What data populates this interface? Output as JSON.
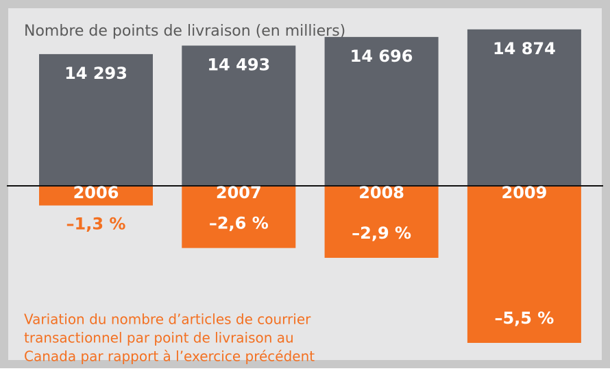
{
  "chart_data": {
    "type": "bar",
    "title": "Nombre de points de livraison (en milliers)",
    "annotation": [
      "Variation du nombre d’articles de courrier",
      "transactionnel par point de livraison au",
      "Canada par rapport à l’exercice précédent"
    ],
    "categories": [
      "2006",
      "2007",
      "2008",
      "2009"
    ],
    "ylim": [
      11200,
      15000
    ],
    "y2lim": [
      -0.7,
      -5.5
    ],
    "series": [
      {
        "name": "Points de livraison",
        "color": "#5f636b",
        "values": [
          14293,
          14493,
          14696,
          14874
        ],
        "value_labels": [
          "14 293",
          "14 493",
          "14 696",
          "14 874"
        ]
      },
      {
        "name": "Variation",
        "color": "#f37021",
        "axis": "y2",
        "values": [
          -1.3,
          -2.6,
          -2.9,
          -5.5
        ],
        "value_labels": [
          "–1,3 %",
          "–2,6 %",
          "–2,9 %",
          "–5,5 %"
        ]
      }
    ]
  }
}
